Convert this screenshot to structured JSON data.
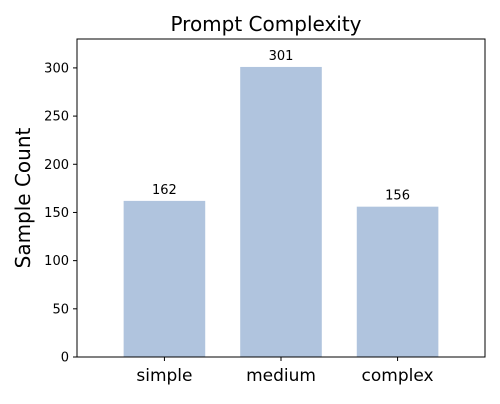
{
  "chart_data": {
    "type": "bar",
    "title": "Prompt Complexity",
    "xlabel": "",
    "ylabel": "Sample Count",
    "categories": [
      "simple",
      "medium",
      "complex"
    ],
    "values": [
      162,
      301,
      156
    ],
    "data_labels": [
      "162",
      "301",
      "156"
    ],
    "ylim": [
      0,
      330
    ],
    "yticks": [
      0,
      50,
      100,
      150,
      200,
      250,
      300
    ],
    "ytick_labels": [
      "0",
      "50",
      "100",
      "150",
      "200",
      "250",
      "300"
    ],
    "grid": false,
    "legend": "none",
    "bar_color": "#b0c4de"
  }
}
